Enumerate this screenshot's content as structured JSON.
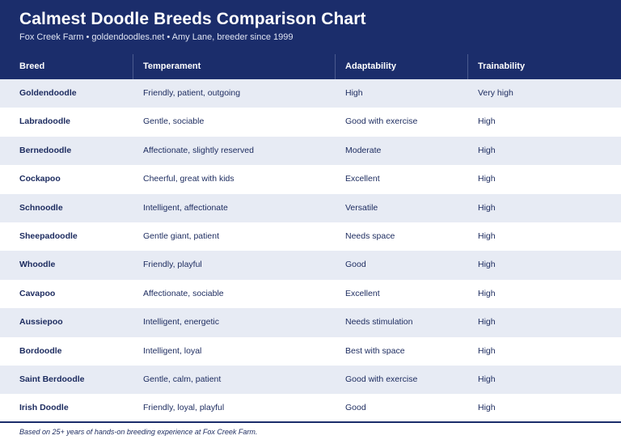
{
  "header": {
    "title": "Calmest Doodle Breeds Comparison Chart",
    "subtitle": "Fox Creek Farm • goldendoodles.net • Amy Lane, breeder since 1999"
  },
  "table": {
    "columns": [
      "Breed",
      "Temperament",
      "Adaptability",
      "Trainability"
    ],
    "rows": [
      [
        "Goldendoodle",
        "Friendly, patient, outgoing",
        "High",
        "Very high"
      ],
      [
        "Labradoodle",
        "Gentle, sociable",
        "Good with exercise",
        "High"
      ],
      [
        "Bernedoodle",
        "Affectionate, slightly reserved",
        "Moderate",
        "High"
      ],
      [
        "Cockapoo",
        "Cheerful, great with kids",
        "Excellent",
        "High"
      ],
      [
        "Schnoodle",
        "Intelligent, affectionate",
        "Versatile",
        "High"
      ],
      [
        "Sheepadoodle",
        "Gentle giant, patient",
        "Needs space",
        "High"
      ],
      [
        "Whoodle",
        "Friendly, playful",
        "Good",
        "High"
      ],
      [
        "Cavapoo",
        "Affectionate, sociable",
        "Excellent",
        "High"
      ],
      [
        "Aussiepoo",
        "Intelligent, energetic",
        "Needs stimulation",
        "High"
      ],
      [
        "Bordoodle",
        "Intelligent, loyal",
        "Best with space",
        "High"
      ],
      [
        "Saint Berdoodle",
        "Gentle, calm, patient",
        "Good with exercise",
        "High"
      ],
      [
        "Irish Doodle",
        "Friendly, loyal, playful",
        "Good",
        "High"
      ]
    ]
  },
  "footer": {
    "note": "Based on 25+ years of hands-on breeding experience at Fox Creek Farm."
  },
  "colors": {
    "header_bg": "#1b2d6b",
    "row_alt_bg": "#e7ebf4",
    "text": "#1b2a5e"
  }
}
